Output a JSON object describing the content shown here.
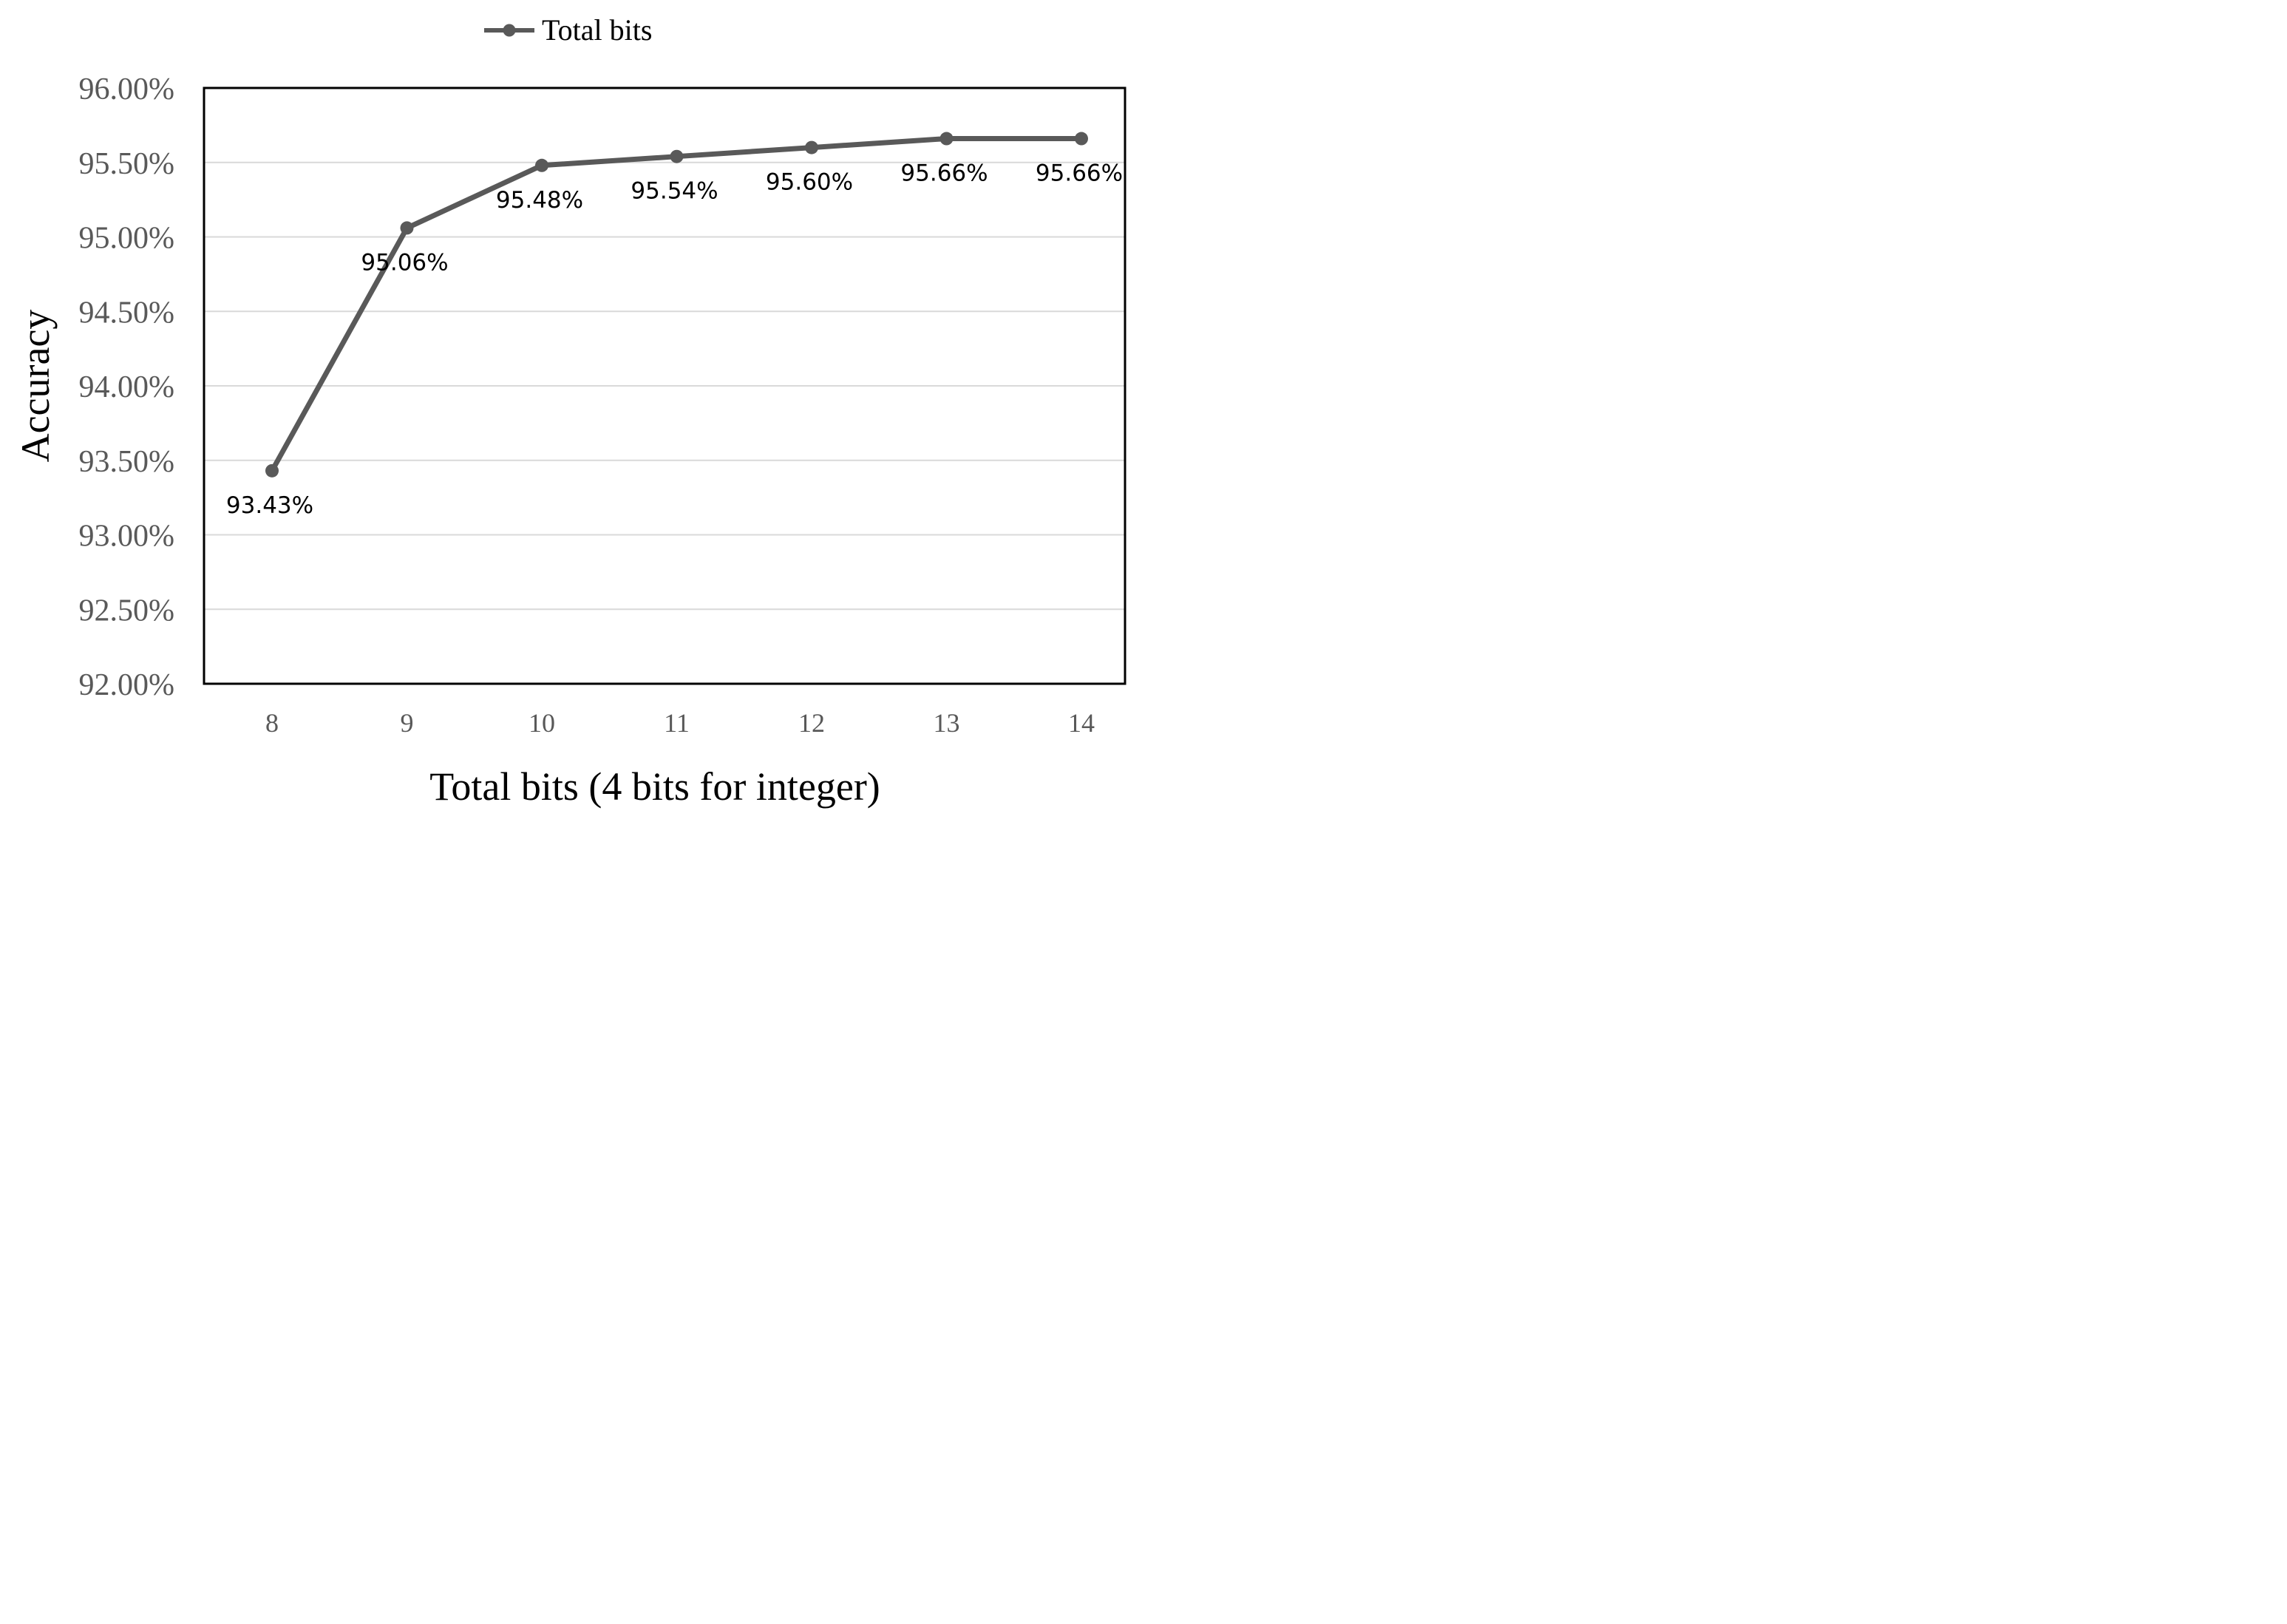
{
  "chart_data": {
    "type": "line",
    "x": [
      8,
      9,
      10,
      11,
      12,
      13,
      14
    ],
    "series": [
      {
        "name": "Total bits",
        "values": [
          93.43,
          95.06,
          95.48,
          95.54,
          95.6,
          95.66,
          95.66
        ],
        "labels": [
          "93.43%",
          "95.06%",
          "95.48%",
          "95.54%",
          "95.60%",
          "95.66%",
          "95.66%"
        ],
        "color": "#595959"
      }
    ],
    "xlabel": "Total bits (4 bits for integer)",
    "ylabel": "Accuracy",
    "ylim": [
      92.0,
      96.0
    ],
    "yticks": [
      92.0,
      92.5,
      93.0,
      93.5,
      94.0,
      94.5,
      95.0,
      95.5,
      96.0
    ],
    "ytick_labels": [
      "92.00%",
      "92.50%",
      "93.00%",
      "93.50%",
      "94.00%",
      "94.50%",
      "95.00%",
      "95.50%",
      "96.00%"
    ],
    "xtick_labels": [
      "8",
      "9",
      "10",
      "11",
      "12",
      "13",
      "14"
    ],
    "grid": true,
    "legend_position": "top-center",
    "gridline_color": "#d9d9d9",
    "axis_color": "#000000"
  }
}
